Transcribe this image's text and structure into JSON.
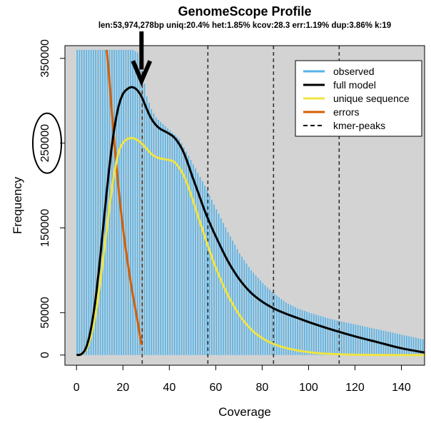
{
  "chart_data": {
    "type": "line",
    "title": "GenomeScope Profile",
    "subtitle": "len:53,974,278bp uniq:20.4%  het:1.85% kcov:28.3 err:1.19%  dup:3.86%  k:19",
    "xlabel": "Coverage",
    "ylabel": "Frequency",
    "xlim": [
      -5,
      150
    ],
    "ylim": [
      -12000,
      365000
    ],
    "x_ticks": [
      0,
      20,
      40,
      60,
      80,
      100,
      120,
      140
    ],
    "y_ticks": [
      0,
      50000,
      150000,
      250000,
      350000
    ],
    "grid": false,
    "legend_position": "top-right",
    "colors": {
      "observed": "#56B4E9",
      "full_model": "#000000",
      "unique_sequence": "#F0E442",
      "errors": "#D55E00",
      "kmer_peaks": "#333333",
      "background": "#D3D3D3",
      "annotation": "#000000"
    },
    "series": [
      {
        "name": "observed",
        "type": "bar",
        "x": [
          1,
          3,
          5,
          8,
          10,
          12,
          14,
          16,
          18,
          20,
          22,
          24,
          26,
          28,
          30,
          32,
          34,
          36,
          38,
          40,
          42,
          44,
          46,
          48,
          50,
          55,
          60,
          65,
          70,
          75,
          80,
          85,
          90,
          95,
          100,
          110,
          120,
          130,
          140,
          150
        ],
        "y": [
          360000,
          360000,
          360000,
          360000,
          360000,
          360000,
          360000,
          360000,
          360000,
          360000,
          360000,
          360000,
          357000,
          335000,
          305000,
          290000,
          280000,
          275000,
          270000,
          265000,
          260000,
          255000,
          245000,
          235000,
          225000,
          200000,
          172000,
          145000,
          120000,
          100000,
          85000,
          72000,
          62000,
          55000,
          50000,
          42000,
          36000,
          30000,
          24000,
          18000
        ]
      },
      {
        "name": "full model",
        "type": "line",
        "x": [
          0,
          2,
          4,
          6,
          8,
          10,
          12,
          14,
          16,
          18,
          20,
          22,
          24,
          26,
          28,
          30,
          32,
          34,
          36,
          38,
          40,
          42,
          44,
          46,
          48,
          50,
          52,
          55,
          58,
          60,
          65,
          70,
          75,
          80,
          85,
          90,
          95,
          100,
          110,
          120,
          130,
          140,
          150
        ],
        "y": [
          0,
          1000,
          8000,
          28000,
          62000,
          110000,
          165000,
          218000,
          262000,
          292000,
          308000,
          314000,
          316000,
          313000,
          305000,
          292000,
          280000,
          272000,
          267000,
          264000,
          261000,
          257000,
          250000,
          240000,
          226000,
          210000,
          195000,
          172000,
          152000,
          140000,
          112000,
          90000,
          74000,
          63000,
          55000,
          49000,
          44000,
          39000,
          30000,
          22000,
          15000,
          8000,
          3000
        ]
      },
      {
        "name": "unique sequence",
        "type": "line",
        "x": [
          0,
          2,
          4,
          6,
          8,
          10,
          12,
          14,
          16,
          18,
          20,
          22,
          24,
          26,
          28,
          30,
          32,
          34,
          36,
          38,
          40,
          42,
          44,
          46,
          48,
          50,
          52,
          55,
          58,
          60,
          65,
          70,
          75,
          80,
          85,
          90,
          95,
          100,
          105,
          110,
          120,
          130,
          140,
          150
        ],
        "y": [
          0,
          800,
          6000,
          20000,
          45000,
          82000,
          125000,
          170000,
          210000,
          238000,
          250000,
          255000,
          256000,
          254000,
          250000,
          244000,
          238000,
          234000,
          232000,
          231000,
          230000,
          228000,
          222000,
          213000,
          200000,
          184000,
          167000,
          142000,
          118000,
          103000,
          72000,
          48000,
          31000,
          20000,
          13000,
          8500,
          5500,
          3500,
          2000,
          1200,
          400,
          100,
          0,
          0
        ]
      },
      {
        "name": "errors",
        "type": "line",
        "x": [
          13,
          14,
          16,
          18,
          20,
          22,
          24,
          26,
          28
        ],
        "y": [
          360000,
          330000,
          260000,
          200000,
          150000,
          110000,
          75000,
          45000,
          12000
        ]
      }
    ],
    "kmer_peaks": [
      28.3,
      56.6,
      84.9,
      113.2
    ],
    "annotations": {
      "arrow_target": {
        "x": 28,
        "y": 320000
      },
      "circled_tick": 250000
    }
  }
}
